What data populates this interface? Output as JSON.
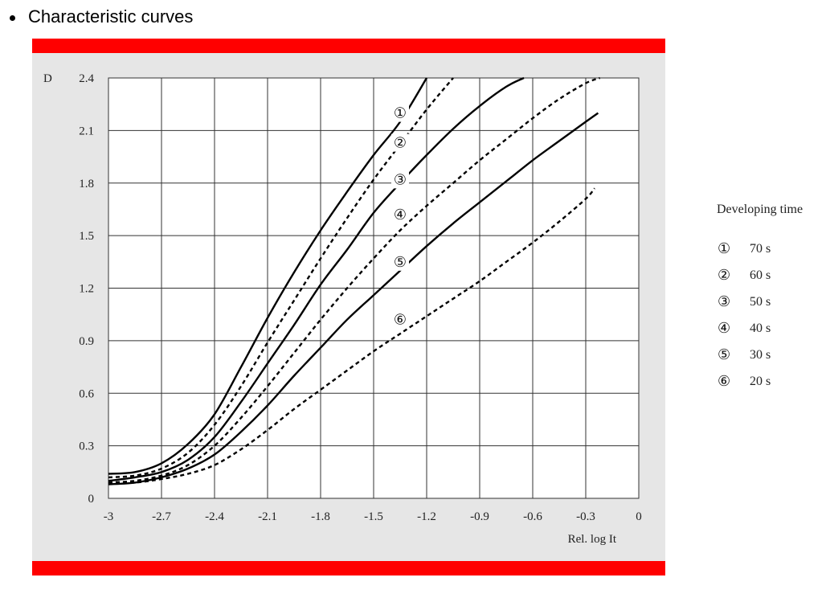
{
  "heading": "Characteristic curves",
  "colors": {
    "accent_bar": "#ff0000",
    "panel_bg": "#e6e6e6",
    "plot_bg": "#ffffff",
    "line": "#000000"
  },
  "chart_data": {
    "type": "line",
    "title": "",
    "ylabel": "D",
    "xlabel": "Rel. log It",
    "xlim": [
      -3,
      0
    ],
    "ylim": [
      0,
      2.4
    ],
    "x_ticks": [
      -3,
      -2.7,
      -2.4,
      -2.1,
      -1.8,
      -1.5,
      -1.2,
      -0.9,
      -0.6,
      -0.3,
      0
    ],
    "x_tick_labels": [
      "-3",
      "-2.7",
      "-2.4",
      "-2.1",
      "-1.8",
      "-1.5",
      "-1.2",
      "-0.9",
      "-0.6",
      "-0.3",
      "0"
    ],
    "y_ticks": [
      0,
      0.3,
      0.6,
      0.9,
      1.2,
      1.5,
      1.8,
      2.1,
      2.4
    ],
    "y_tick_labels": [
      "0",
      "0.3",
      "0.6",
      "0.9",
      "1.2",
      "1.5",
      "1.8",
      "2.1",
      "2.4"
    ],
    "grid": true,
    "legend_title": "Developing time",
    "legend_position": "right",
    "series": [
      {
        "marker": "①",
        "name": "70 s",
        "dash": false,
        "label_at": [
          -1.35,
          2.2
        ],
        "x": [
          -3,
          -2.85,
          -2.7,
          -2.55,
          -2.4,
          -2.25,
          -2.1,
          -1.95,
          -1.8,
          -1.65,
          -1.5,
          -1.35,
          -1.2
        ],
        "y": [
          0.14,
          0.15,
          0.2,
          0.31,
          0.48,
          0.75,
          1.03,
          1.29,
          1.53,
          1.75,
          1.96,
          2.15,
          2.4
        ]
      },
      {
        "marker": "②",
        "name": "60 s",
        "dash": true,
        "label_at": [
          -1.35,
          2.03
        ],
        "x": [
          -3,
          -2.85,
          -2.7,
          -2.55,
          -2.4,
          -2.25,
          -2.1,
          -1.95,
          -1.8,
          -1.65,
          -1.5,
          -1.35,
          -1.2,
          -1.05
        ],
        "y": [
          0.12,
          0.13,
          0.17,
          0.26,
          0.42,
          0.64,
          0.89,
          1.13,
          1.37,
          1.6,
          1.82,
          2.02,
          2.22,
          2.4
        ]
      },
      {
        "marker": "③",
        "name": "50 s",
        "dash": false,
        "label_at": [
          -1.35,
          1.82
        ],
        "x": [
          -3,
          -2.85,
          -2.7,
          -2.55,
          -2.4,
          -2.25,
          -2.1,
          -1.95,
          -1.8,
          -1.65,
          -1.5,
          -1.35,
          -1.2,
          -1.05,
          -0.9,
          -0.75,
          -0.65
        ],
        "y": [
          0.1,
          0.12,
          0.15,
          0.22,
          0.35,
          0.55,
          0.77,
          0.99,
          1.22,
          1.42,
          1.63,
          1.8,
          1.96,
          2.11,
          2.24,
          2.35,
          2.4
        ]
      },
      {
        "marker": "④",
        "name": "40 s",
        "dash": true,
        "label_at": [
          -1.35,
          1.62
        ],
        "x": [
          -3,
          -2.85,
          -2.7,
          -2.55,
          -2.4,
          -2.25,
          -2.1,
          -1.95,
          -1.8,
          -1.65,
          -1.5,
          -1.35,
          -1.2,
          -1.05,
          -0.9,
          -0.75,
          -0.6,
          -0.45,
          -0.3,
          -0.22
        ],
        "y": [
          0.09,
          0.1,
          0.13,
          0.19,
          0.3,
          0.46,
          0.64,
          0.83,
          1.02,
          1.2,
          1.37,
          1.53,
          1.67,
          1.8,
          1.93,
          2.05,
          2.17,
          2.28,
          2.37,
          2.4
        ]
      },
      {
        "marker": "⑤",
        "name": "30 s",
        "dash": false,
        "label_at": [
          -1.35,
          1.35
        ],
        "x": [
          -3,
          -2.85,
          -2.7,
          -2.55,
          -2.4,
          -2.25,
          -2.1,
          -1.95,
          -1.8,
          -1.65,
          -1.5,
          -1.35,
          -1.2,
          -1.05,
          -0.9,
          -0.75,
          -0.6,
          -0.45,
          -0.3,
          -0.23
        ],
        "y": [
          0.08,
          0.09,
          0.12,
          0.17,
          0.25,
          0.38,
          0.53,
          0.7,
          0.86,
          1.02,
          1.16,
          1.3,
          1.44,
          1.57,
          1.69,
          1.81,
          1.93,
          2.04,
          2.15,
          2.2
        ]
      },
      {
        "marker": "⑥",
        "name": "20 s",
        "dash": true,
        "label_at": [
          -1.35,
          1.02
        ],
        "x": [
          -3,
          -2.85,
          -2.7,
          -2.55,
          -2.4,
          -2.25,
          -2.1,
          -1.95,
          -1.8,
          -1.65,
          -1.5,
          -1.35,
          -1.2,
          -1.05,
          -0.9,
          -0.75,
          -0.6,
          -0.45,
          -0.3,
          -0.25
        ],
        "y": [
          0.09,
          0.09,
          0.11,
          0.14,
          0.19,
          0.28,
          0.39,
          0.51,
          0.62,
          0.73,
          0.84,
          0.94,
          1.04,
          1.14,
          1.24,
          1.35,
          1.46,
          1.58,
          1.71,
          1.77
        ]
      }
    ]
  }
}
